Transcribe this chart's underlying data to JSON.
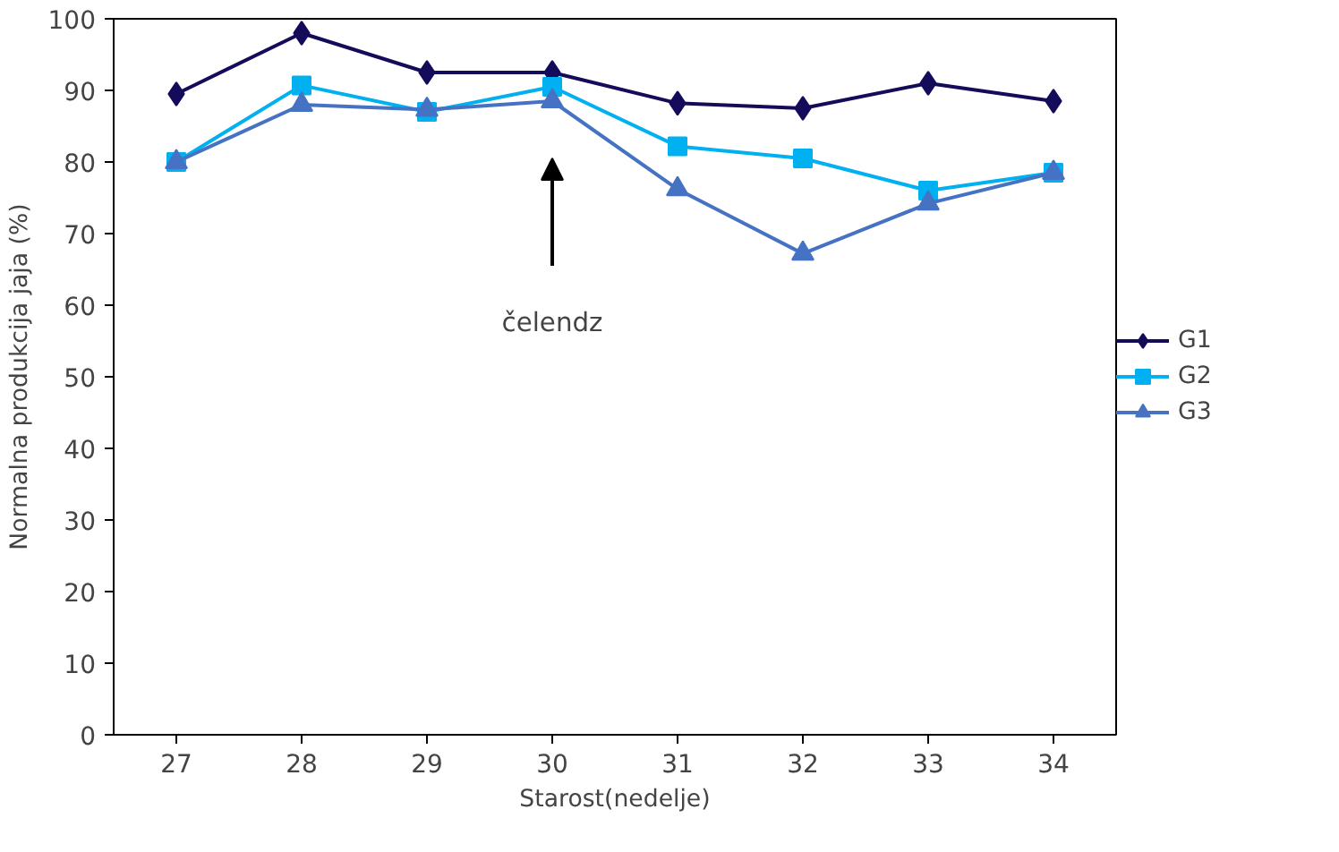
{
  "chart_data": {
    "type": "line",
    "xlabel": "Starost(nedelje)",
    "ylabel": "Normalna produkcija jaja (%)",
    "categories": [
      "27",
      "28",
      "29",
      "30",
      "31",
      "32",
      "33",
      "34"
    ],
    "series": [
      {
        "name": "G1",
        "color": "#140c5a",
        "marker": "diamond",
        "values": [
          89.5,
          98,
          92.5,
          92.5,
          88.2,
          87.5,
          91,
          88.5
        ]
      },
      {
        "name": "G2",
        "color": "#00b0f0",
        "marker": "square",
        "values": [
          80,
          90.7,
          87,
          90.5,
          82.2,
          80.5,
          76,
          78.5
        ]
      },
      {
        "name": "G3",
        "color": "#4672c4",
        "marker": "triangle",
        "values": [
          80,
          88,
          87.3,
          88.5,
          76.2,
          67.2,
          74.2,
          78.5
        ]
      }
    ],
    "annotations": [
      "čelendz"
    ],
    "ylim": [
      0,
      100
    ],
    "yticks": [
      0,
      10,
      20,
      30,
      40,
      50,
      60,
      70,
      80,
      90,
      100
    ],
    "grid": false,
    "legend": "right",
    "line_style": "solid"
  }
}
